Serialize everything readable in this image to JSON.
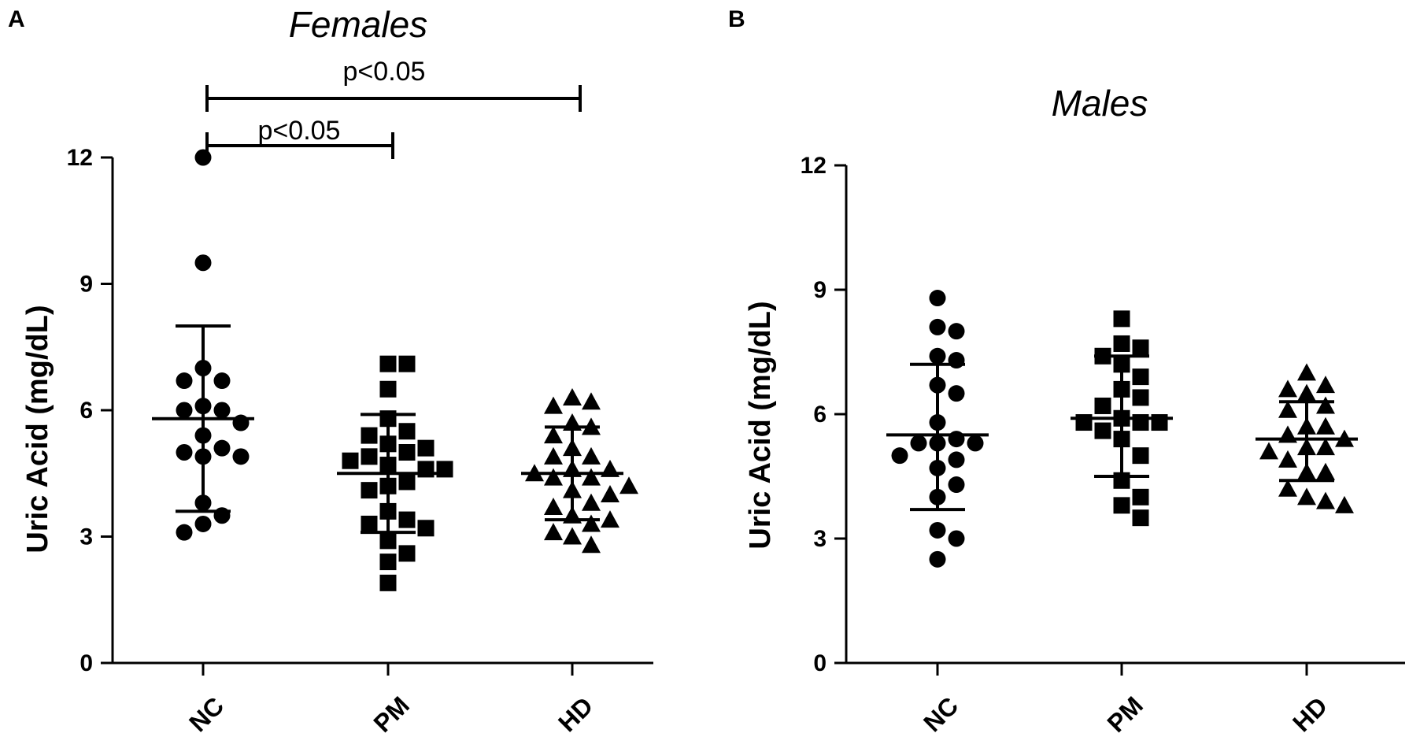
{
  "chart_data": [
    {
      "type": "scatter",
      "panel": "A",
      "title": "Females",
      "xlabel": "",
      "ylabel": "Uric  Acid (mg/dL)",
      "ylim": [
        0,
        12
      ],
      "yticks": [
        "0",
        "3",
        "6",
        "9",
        "12"
      ],
      "categories": [
        "NC",
        "PM",
        "HD"
      ],
      "series": [
        {
          "name": "NC",
          "marker": "circle",
          "values": [
            12.0,
            9.5,
            7.0,
            6.7,
            6.7,
            6.1,
            6.0,
            6.0,
            5.7,
            5.4,
            5.1,
            5.0,
            4.9,
            4.9,
            3.8,
            3.5,
            3.3,
            3.1
          ],
          "mean": 5.8,
          "sd_upper": 8.0,
          "sd_lower": 3.6
        },
        {
          "name": "PM",
          "marker": "square",
          "values": [
            7.1,
            7.1,
            6.5,
            5.8,
            5.5,
            5.4,
            5.2,
            5.1,
            5.0,
            4.9,
            4.8,
            4.7,
            4.6,
            4.6,
            4.3,
            4.2,
            4.1,
            3.6,
            3.4,
            3.3,
            3.2,
            2.9,
            2.6,
            2.4,
            1.9
          ],
          "mean": 4.5,
          "sd_upper": 5.9,
          "sd_lower": 3.1
        },
        {
          "name": "HD",
          "marker": "triangle",
          "values": [
            6.3,
            6.2,
            6.1,
            5.7,
            5.6,
            5.4,
            5.1,
            4.9,
            4.9,
            4.6,
            4.6,
            4.5,
            4.4,
            4.4,
            4.2,
            4.1,
            4.0,
            3.8,
            3.7,
            3.5,
            3.4,
            3.3,
            3.1,
            3.0,
            2.8
          ],
          "mean": 4.5,
          "sd_upper": 5.6,
          "sd_lower": 3.4
        }
      ],
      "annotations": [
        {
          "text": "p<0.05",
          "from": "NC",
          "to": "HD",
          "level": 14.2
        },
        {
          "text": "p<0.05",
          "from": "NC",
          "to": "PM",
          "level": 13.0
        }
      ]
    },
    {
      "type": "scatter",
      "panel": "B",
      "title": "Males",
      "xlabel": "",
      "ylabel": "Uric  Acid (mg/dL)",
      "ylim": [
        0,
        12
      ],
      "yticks": [
        "0",
        "3",
        "6",
        "9",
        "12"
      ],
      "categories": [
        "NC",
        "PM",
        "HD"
      ],
      "series": [
        {
          "name": "NC",
          "marker": "circle",
          "values": [
            8.8,
            8.1,
            8.0,
            7.4,
            7.3,
            6.7,
            6.5,
            5.8,
            5.4,
            5.3,
            5.3,
            5.3,
            5.0,
            4.9,
            4.7,
            4.3,
            4.0,
            3.2,
            3.0,
            2.5
          ],
          "mean": 5.5,
          "sd_upper": 7.2,
          "sd_lower": 3.7
        },
        {
          "name": "PM",
          "marker": "square",
          "values": [
            8.3,
            7.7,
            7.6,
            7.4,
            7.2,
            6.9,
            6.6,
            6.4,
            6.2,
            5.9,
            5.8,
            5.8,
            5.8,
            5.6,
            5.4,
            5.0,
            4.4,
            4.0,
            3.8,
            3.5
          ],
          "mean": 5.9,
          "sd_upper": 7.4,
          "sd_lower": 4.5
        },
        {
          "name": "HD",
          "marker": "triangle",
          "values": [
            7.0,
            6.7,
            6.6,
            6.5,
            6.2,
            6.1,
            5.7,
            5.7,
            5.5,
            5.4,
            5.2,
            5.2,
            5.1,
            4.9,
            4.6,
            4.6,
            4.2,
            4.0,
            3.9,
            3.8
          ],
          "mean": 5.4,
          "sd_upper": 6.3,
          "sd_lower": 4.4
        }
      ],
      "annotations": []
    }
  ]
}
